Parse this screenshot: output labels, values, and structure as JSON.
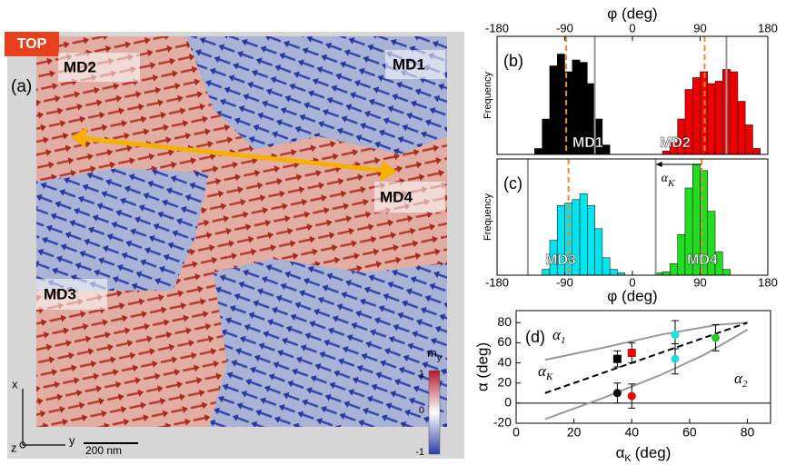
{
  "panel_a": {
    "badge": "TOP",
    "label": "(a)",
    "domains": [
      "MD2",
      "MD1",
      "MD4",
      "MD3"
    ],
    "colorbar": {
      "symbol": "m",
      "sub": "y",
      "ticks": [
        1,
        0,
        -1
      ]
    },
    "axes": {
      "x": "x",
      "y": "y",
      "z": "z"
    },
    "scale": "200 nm"
  },
  "chart_data": [
    {
      "type": "histogram",
      "panel": "(b)",
      "ylabel": "Frequency",
      "xlabel": "φ (deg)",
      "xaxis": "top",
      "xlim": [
        -180,
        180
      ],
      "xticks": [
        -180,
        -90,
        0,
        90,
        180
      ],
      "ylim": [
        0,
        100
      ],
      "bins": [
        -130,
        -120,
        -110,
        -100,
        -90,
        -80,
        -70,
        -60,
        -50,
        -40,
        -30,
        -20,
        -10,
        0,
        10,
        20,
        30,
        40,
        50,
        60,
        70,
        80,
        90,
        100,
        110,
        120,
        130,
        140,
        150,
        160,
        170
      ],
      "series": [
        {
          "color": "#000000",
          "values": [
            5,
            30,
            75,
            85,
            70,
            80,
            78,
            60,
            30,
            8,
            0,
            0,
            0,
            0,
            0,
            0,
            0,
            0,
            0,
            0,
            0,
            0,
            0,
            0,
            0,
            0,
            0,
            0,
            0,
            0
          ]
        },
        {
          "color": "#ee0000",
          "values": [
            0,
            0,
            0,
            0,
            0,
            0,
            0,
            0,
            0,
            0,
            0,
            0,
            0,
            0,
            0,
            0,
            0,
            3,
            10,
            30,
            55,
            65,
            70,
            60,
            62,
            72,
            70,
            45,
            25,
            5
          ]
        }
      ],
      "labels": [
        "MD1",
        "MD2"
      ],
      "vlines": [
        {
          "value": -88,
          "color": "#f08a24",
          "dash": true
        },
        {
          "value": 96,
          "color": "#f08a24",
          "dash": true
        },
        {
          "value": -50,
          "color": "#999999",
          "dash": false
        },
        {
          "value": 125,
          "color": "#999999",
          "dash": false
        }
      ]
    },
    {
      "type": "histogram",
      "panel": "(c)",
      "ylabel": "Frequency",
      "xlabel": "φ (deg)",
      "xaxis": "bottom",
      "xlim": [
        -180,
        180
      ],
      "xticks": [
        -180,
        -90,
        0,
        90,
        180
      ],
      "ylim": [
        0,
        100
      ],
      "bins": [
        -130,
        -120,
        -110,
        -100,
        -90,
        -80,
        -70,
        -60,
        -50,
        -40,
        -30,
        -20,
        -10,
        0,
        10,
        20,
        30,
        40,
        50,
        60,
        70,
        80,
        90,
        100,
        110,
        120,
        130,
        140,
        150,
        160,
        170
      ],
      "series": [
        {
          "color": "#00e5ee",
          "values": [
            0,
            5,
            30,
            60,
            62,
            65,
            70,
            60,
            40,
            15,
            5,
            2,
            0,
            0,
            0,
            0,
            0,
            0,
            0,
            0,
            0,
            0,
            0,
            0,
            0,
            0,
            0,
            0,
            0,
            0
          ]
        },
        {
          "color": "#22dd22",
          "values": [
            0,
            0,
            0,
            0,
            0,
            0,
            0,
            0,
            0,
            0,
            0,
            0,
            0,
            0,
            0,
            0,
            2,
            3,
            10,
            35,
            75,
            95,
            90,
            55,
            20,
            5,
            0,
            0,
            0,
            0
          ]
        }
      ],
      "labels": [
        "MD3",
        "MD4"
      ],
      "vlines": [
        {
          "value": -85,
          "color": "#f08a24",
          "dash": true
        },
        {
          "value": 92,
          "color": "#f08a24",
          "dash": true
        },
        {
          "value": -139,
          "color": "#999999",
          "dash": false
        },
        {
          "value": 31,
          "color": "#999999",
          "dash": false
        }
      ],
      "arrow": {
        "from": 92,
        "to": 31,
        "symbol": "α",
        "sub": "K"
      }
    },
    {
      "type": "scatter",
      "panel": "(d)",
      "ylabel": "α (deg)",
      "xlabel": {
        "symbol": "α",
        "sub": "K",
        "unit": "(deg)"
      },
      "xlim": [
        0,
        88
      ],
      "xticks": [
        0,
        20,
        40,
        60,
        80
      ],
      "ylim": [
        -20,
        92
      ],
      "yticks": [
        -20,
        0,
        20,
        40,
        60,
        80
      ],
      "series": [
        {
          "color": "#000000",
          "marker": "square",
          "x": [
            35
          ],
          "values": [
            44
          ],
          "errors": [
            8
          ]
        },
        {
          "color": "#000000",
          "marker": "circle",
          "x": [
            35
          ],
          "values": [
            10
          ],
          "errors": [
            10
          ]
        },
        {
          "color": "#ee0000",
          "marker": "square",
          "x": [
            40
          ],
          "values": [
            50
          ],
          "errors": [
            10
          ]
        },
        {
          "color": "#ee0000",
          "marker": "circle",
          "x": [
            40
          ],
          "values": [
            7
          ],
          "errors": [
            12
          ]
        },
        {
          "color": "#22dddd",
          "marker": "circle",
          "x": [
            55,
            55
          ],
          "values": [
            68,
            44
          ],
          "errors": [
            14,
            15
          ]
        },
        {
          "color": "#22cc22",
          "marker": "circle",
          "x": [
            69
          ],
          "values": [
            65
          ],
          "errors": [
            13
          ]
        }
      ],
      "lines": [
        {
          "symbol": "α",
          "sub": "1",
          "color": "#999999",
          "dash": false,
          "x": [
            10,
            30,
            50,
            70,
            80
          ],
          "values": [
            43,
            55,
            68,
            78,
            80
          ]
        },
        {
          "symbol": "α",
          "sub": "K",
          "color": "#000000",
          "dash": true,
          "x": [
            10,
            80
          ],
          "values": [
            10,
            80
          ]
        },
        {
          "symbol": "α",
          "sub": "2",
          "color": "#999999",
          "dash": false,
          "x": [
            10,
            30,
            50,
            65,
            80
          ],
          "values": [
            -16,
            5,
            28,
            48,
            73
          ]
        }
      ]
    }
  ]
}
